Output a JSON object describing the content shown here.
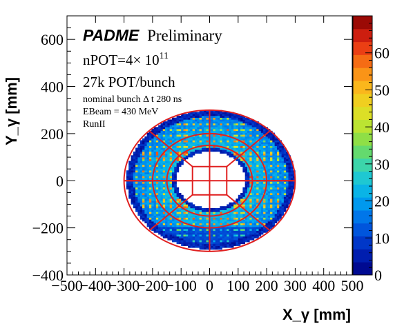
{
  "chart_data": {
    "type": "heatmap",
    "xlabel": "X_γ [mm]",
    "ylabel": "Y_γ [mm]",
    "xlim": [
      -500,
      500
    ],
    "ylim": [
      -400,
      700
    ],
    "x_ticks": [
      -500,
      -400,
      -300,
      -200,
      -100,
      0,
      100,
      200,
      300,
      400,
      500
    ],
    "y_ticks": [
      -400,
      -200,
      0,
      200,
      400,
      600
    ],
    "z_range": [
      0,
      70
    ],
    "z_ticks": [
      0,
      10,
      20,
      30,
      40,
      50,
      60
    ],
    "colormap": "kBird-like rainbow (dark blue → cyan → green → yellow → orange → red → dark red)",
    "annotations": {
      "experiment": "PADME",
      "status": "Preliminary",
      "npot_prefix": "nPOT=4",
      "npot_times": "×",
      "npot_base": " 10",
      "npot_exp": "11",
      "pot_per_bunch": "27k POT/bunch",
      "bunch_length": "nominal bunch Δ t 280 ns",
      "beam_energy": "EBeam = 430 MeV",
      "run": "RunII"
    },
    "detector_overlay": {
      "color": "#e02020",
      "outer_ellipse": {
        "rx": 300,
        "ry": 300
      },
      "middle_circle_radius": 200,
      "inner_circle_radius": 150,
      "central_hole_half_size": 60,
      "radial_lines": true
    },
    "density_description": {
      "annulus_inner_radius": 130,
      "annulus_outer_radius": 295,
      "peak_value": 60,
      "typical_value": 20
    }
  }
}
